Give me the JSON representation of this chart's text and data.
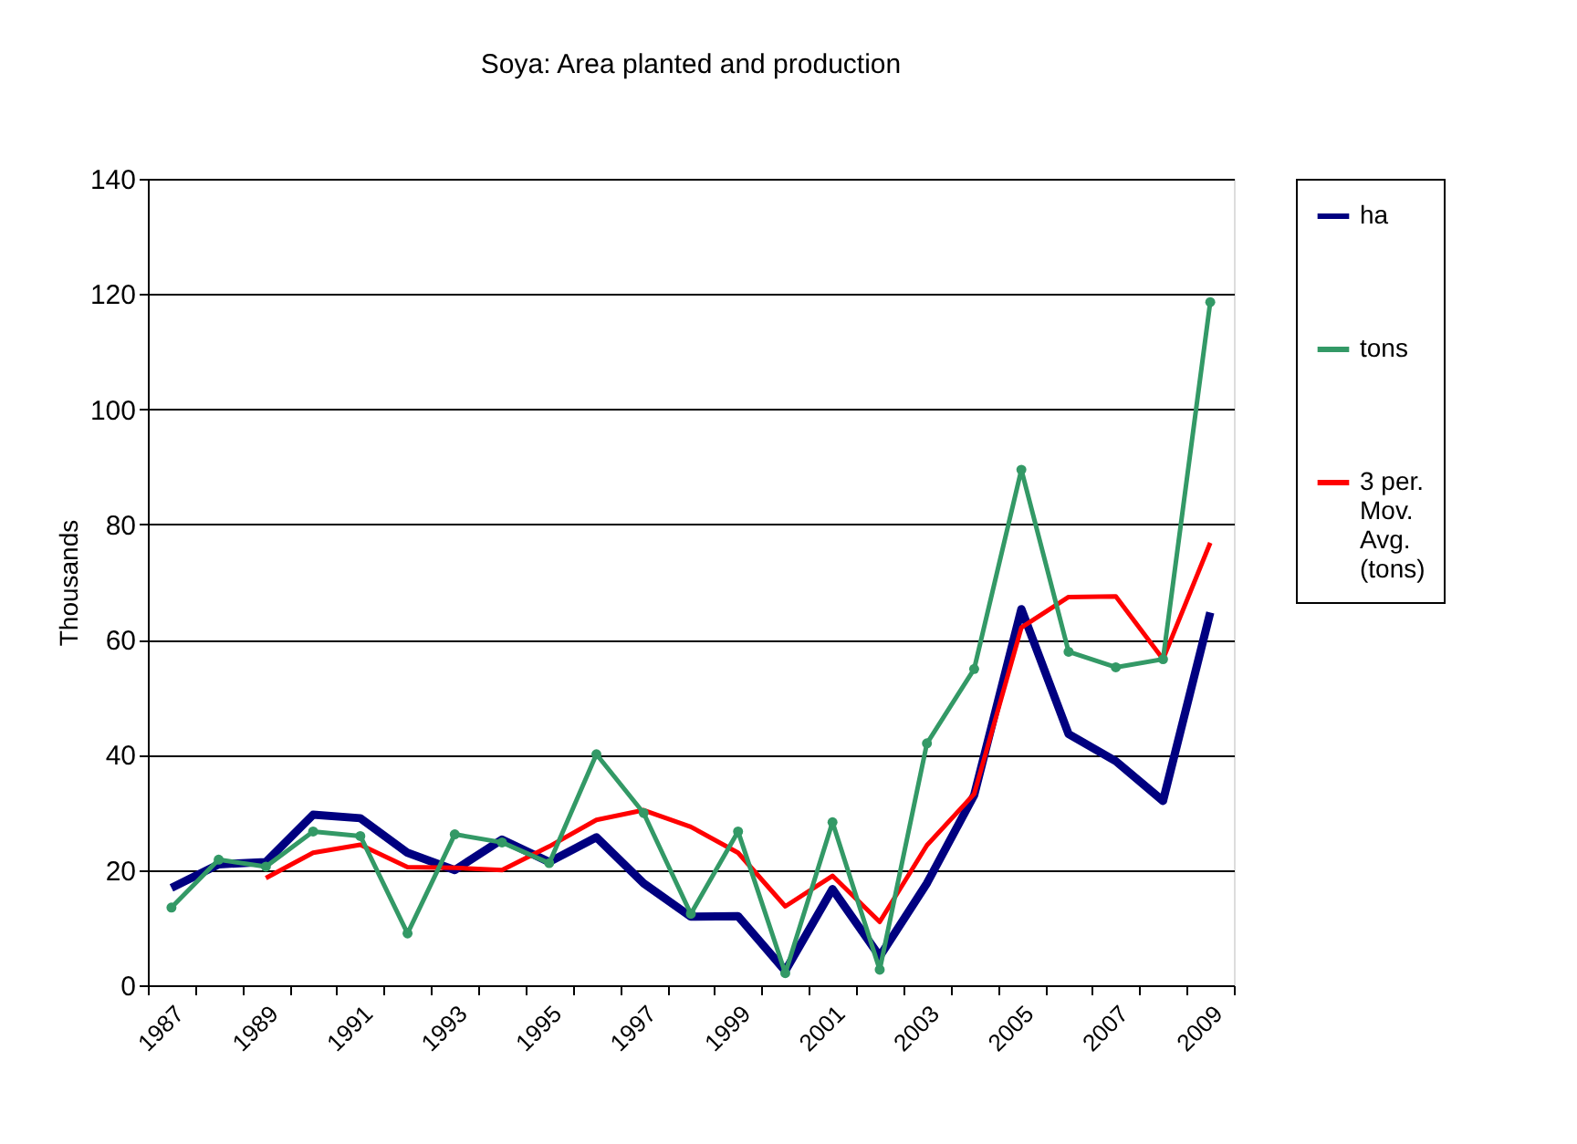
{
  "chart_data": {
    "type": "line",
    "title": "Soya: Area planted and production",
    "ylabel": "Thousands",
    "categories": [
      "1987",
      null,
      "1989",
      null,
      "1991",
      null,
      "1993",
      null,
      "1995",
      null,
      "1997",
      null,
      "1999",
      null,
      "2001",
      null,
      "2003",
      null,
      "2005",
      null,
      "2007",
      null,
      "2009"
    ],
    "series": [
      {
        "name": "ha",
        "color": "#000080",
        "marker": "none",
        "values": [
          16.9,
          21,
          21.4,
          29.6,
          29,
          23,
          20,
          25.3,
          21.4,
          25.7,
          17.7,
          11.9,
          12,
          2.5,
          16.7,
          5,
          17.7,
          33,
          65.3,
          43.6,
          38.9,
          32,
          64.7
        ]
      },
      {
        "name": "tons",
        "color": "#339966",
        "marker": "circle",
        "values": [
          13.5,
          21.8,
          20.6,
          26.7,
          25.9,
          9,
          26.2,
          24.8,
          21.2,
          40.1,
          29.9,
          12.4,
          26.7,
          2.1,
          28.3,
          2.7,
          42,
          54.9,
          89.5,
          57.9,
          55.2,
          56.6,
          118.6
        ]
      },
      {
        "name": "3 per. Mov. Avg. (tons)",
        "color": "#ff0000",
        "marker": "none",
        "values": [
          null,
          null,
          18.6,
          23,
          24.4,
          20.5,
          20.4,
          20,
          24.1,
          28.7,
          30.4,
          27.5,
          23,
          13.7,
          19,
          11,
          24.3,
          33.2,
          62.1,
          67.4,
          67.5,
          56.6,
          76.8
        ]
      }
    ],
    "ylim": [
      0,
      140
    ],
    "yticks": [
      0,
      20,
      40,
      60,
      80,
      100,
      120,
      140
    ],
    "grid": "y",
    "legend": "right"
  }
}
